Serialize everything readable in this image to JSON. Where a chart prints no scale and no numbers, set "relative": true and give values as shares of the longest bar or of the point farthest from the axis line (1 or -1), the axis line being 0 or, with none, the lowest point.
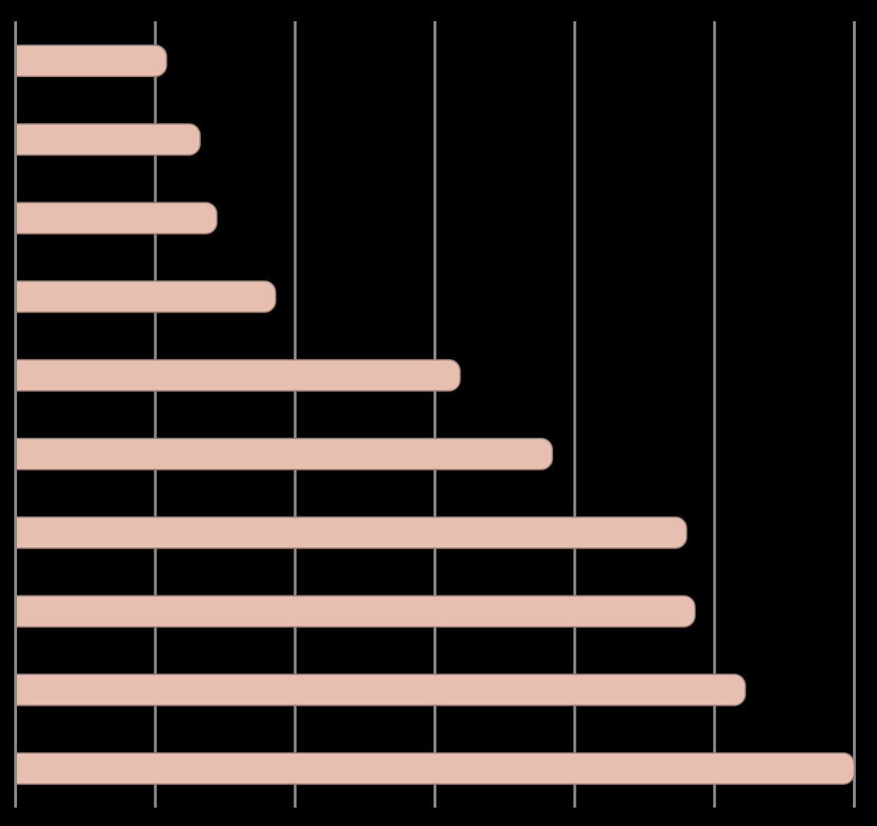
{
  "chart_data": {
    "type": "bar",
    "orientation": "horizontal",
    "relative": true,
    "categories": [
      null,
      null,
      null,
      null,
      null,
      null,
      null,
      null,
      null,
      null
    ],
    "values": [
      0.18,
      0.22,
      0.24,
      0.31,
      0.53,
      0.64,
      0.8,
      0.81,
      0.87,
      1
    ],
    "color": "#e6bfb0",
    "grid": "x"
  }
}
